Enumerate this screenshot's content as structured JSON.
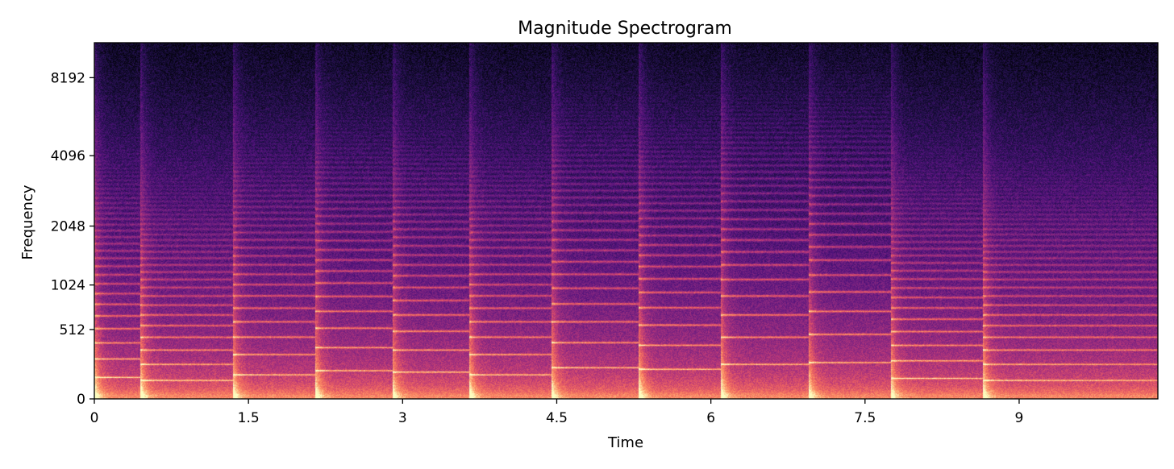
{
  "chart_data": {
    "type": "heatmap",
    "title": "Magnitude Spectrogram",
    "xlabel": "Time",
    "ylabel": "Frequency",
    "x_range": [
      0,
      10.35
    ],
    "y_scale": "log (mel-style), 0 at bottom",
    "x_ticks": [
      "0",
      "1.5",
      "3",
      "4.5",
      "6",
      "7.5",
      "9"
    ],
    "x_tick_values": [
      0,
      1.5,
      3,
      4.5,
      6,
      7.5,
      9
    ],
    "y_ticks": [
      "0",
      "512",
      "1024",
      "2048",
      "4096",
      "8192"
    ],
    "y_tick_values": [
      0,
      512,
      1024,
      2048,
      4096,
      8192
    ],
    "colormap": "magma",
    "colormap_stops": [
      "#000004",
      "#1c1044",
      "#4f127b",
      "#812581",
      "#b5367a",
      "#e55964",
      "#fb8761",
      "#fec287",
      "#fcfdbf"
    ],
    "grid": false,
    "legend": "none",
    "notes_segments": [
      {
        "start": 0.0,
        "end": 0.45,
        "f0": 130
      },
      {
        "start": 0.45,
        "end": 1.35,
        "f0": 110
      },
      {
        "start": 1.35,
        "end": 2.15,
        "f0": 147
      },
      {
        "start": 2.15,
        "end": 2.9,
        "f0": 175
      },
      {
        "start": 2.9,
        "end": 3.65,
        "f0": 165
      },
      {
        "start": 3.65,
        "end": 4.45,
        "f0": 147
      },
      {
        "start": 4.45,
        "end": 5.3,
        "f0": 196
      },
      {
        "start": 5.3,
        "end": 6.1,
        "f0": 185
      },
      {
        "start": 6.1,
        "end": 6.95,
        "f0": 220
      },
      {
        "start": 6.95,
        "end": 7.75,
        "f0": 233
      },
      {
        "start": 7.75,
        "end": 8.65,
        "f0": 123
      },
      {
        "start": 8.65,
        "end": 10.35,
        "f0": 110
      }
    ]
  }
}
